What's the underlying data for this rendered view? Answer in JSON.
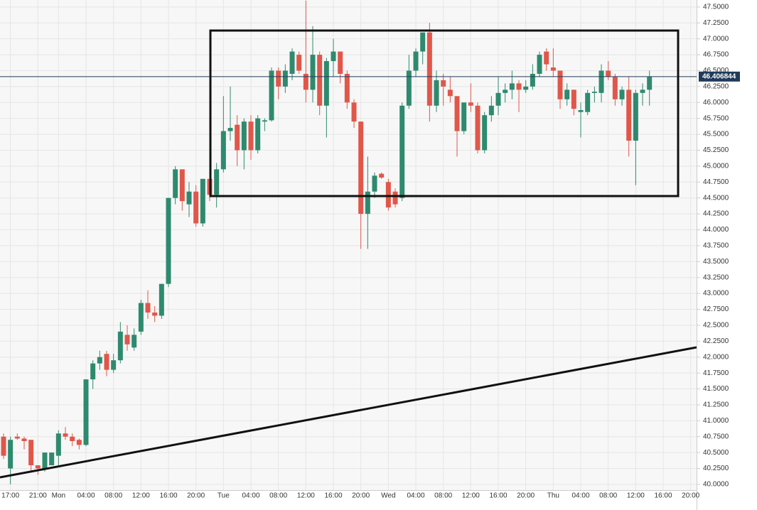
{
  "chart_data": {
    "type": "candlestick",
    "categories": [
      null,
      "17:00",
      null,
      null,
      null,
      "21:00",
      null,
      null,
      "Mon",
      null,
      null,
      null,
      "04:00",
      null,
      null,
      null,
      "08:00",
      null,
      null,
      null,
      "12:00",
      null,
      null,
      null,
      "16:00",
      null,
      null,
      null,
      "20:00",
      null,
      null,
      null,
      "Tue",
      null,
      null,
      null,
      "04:00",
      null,
      null,
      null,
      "08:00",
      null,
      null,
      null,
      "12:00",
      null,
      null,
      null,
      "16:00",
      null,
      null,
      null,
      "20:00",
      null,
      null,
      null,
      "Wed",
      null,
      null,
      null,
      "04:00",
      null,
      null,
      null,
      "08:00",
      null,
      null,
      null,
      "12:00",
      null,
      null,
      null,
      "16:00",
      null,
      null,
      null,
      "20:00",
      null,
      null,
      null,
      "Thu",
      null,
      null,
      null,
      "04:00",
      null,
      null,
      null,
      "08:00",
      null,
      null,
      null,
      "12:00",
      null,
      null,
      null,
      "16:00",
      null,
      null,
      null,
      "20:00"
    ],
    "open": [
      40.75,
      40.25,
      40.75,
      40.72,
      40.7,
      40.3,
      40.25,
      40.3,
      40.45,
      40.8,
      40.75,
      40.7,
      40.62,
      41.65,
      41.9,
      42.05,
      41.8,
      41.95,
      42.35,
      42.15,
      42.4,
      42.85,
      42.7,
      42.65,
      43.15,
      44.5,
      44.95,
      44.4,
      44.6,
      44.1,
      44.8,
      44.55,
      44.95,
      45.55,
      45.65,
      45.25,
      45.7,
      45.25,
      45.7,
      45.72,
      46.5,
      46.25,
      46.45,
      46.75,
      46.45,
      46.2,
      46.75,
      45.95,
      46.65,
      46.8,
      46.45,
      46.0,
      45.7,
      44.25,
      44.6,
      44.88,
      44.75,
      44.6,
      44.5,
      45.95,
      46.5,
      46.8,
      47.1,
      45.95,
      46.35,
      46.2,
      46.1,
      45.55,
      46.0,
      45.95,
      45.25,
      45.8,
      45.95,
      46.15,
      46.2,
      46.3,
      46.2,
      46.25,
      46.45,
      46.8,
      46.55,
      46.5,
      46.05,
      46.2,
      45.85,
      45.85,
      46.15,
      46.15,
      46.5,
      46.4,
      46.05,
      46.2,
      45.4,
      46.15,
      46.2,
      null,
      null,
      null,
      null,
      null,
      null
    ],
    "high": [
      40.8,
      40.75,
      40.8,
      40.75,
      40.7,
      40.3,
      40.5,
      40.5,
      40.85,
      40.9,
      40.8,
      40.72,
      41.65,
      41.95,
      42.1,
      42.1,
      42.05,
      42.55,
      42.5,
      42.45,
      42.9,
      43.05,
      42.8,
      43.15,
      44.5,
      45.0,
      44.95,
      44.75,
      44.7,
      44.8,
      44.85,
      45.05,
      46.1,
      46.25,
      45.8,
      45.75,
      45.8,
      45.8,
      45.75,
      46.55,
      46.55,
      46.6,
      46.85,
      46.8,
      47.6,
      47.2,
      46.8,
      46.7,
      47.0,
      46.8,
      46.5,
      46.05,
      45.7,
      45.15,
      44.9,
      44.9,
      44.8,
      44.65,
      46.0,
      46.75,
      46.85,
      47.1,
      47.25,
      46.5,
      46.45,
      46.4,
      46.1,
      46.0,
      46.3,
      46.0,
      45.85,
      46.1,
      46.4,
      46.3,
      46.5,
      46.35,
      46.35,
      46.6,
      46.8,
      46.85,
      46.85,
      46.5,
      46.3,
      46.2,
      46.0,
      46.2,
      46.25,
      46.6,
      46.65,
      46.45,
      46.25,
      46.4,
      46.2,
      46.3,
      46.5,
      null,
      null,
      null,
      null,
      null,
      null
    ],
    "low": [
      40.4,
      40.0,
      40.7,
      40.55,
      40.2,
      40.15,
      40.2,
      40.3,
      40.3,
      40.7,
      40.6,
      40.55,
      40.6,
      41.5,
      41.8,
      41.7,
      41.75,
      41.9,
      42.1,
      42.1,
      42.35,
      42.6,
      42.55,
      42.6,
      43.1,
      44.4,
      44.3,
      44.2,
      44.05,
      44.05,
      44.45,
      44.35,
      44.9,
      45.4,
      45.0,
      44.95,
      45.1,
      45.2,
      45.55,
      45.7,
      46.05,
      46.15,
      46.35,
      46.45,
      46.0,
      46.0,
      45.8,
      45.45,
      46.4,
      46.3,
      45.9,
      45.6,
      43.7,
      43.7,
      44.5,
      44.8,
      44.3,
      44.35,
      44.45,
      45.9,
      46.4,
      46.6,
      45.7,
      45.85,
      45.95,
      46.0,
      45.15,
      45.5,
      45.85,
      45.2,
      45.2,
      45.7,
      45.8,
      46.0,
      46.05,
      45.85,
      46.15,
      46.2,
      46.4,
      46.5,
      46.4,
      45.9,
      45.95,
      45.8,
      45.45,
      45.8,
      46.0,
      46.0,
      46.35,
      45.95,
      45.95,
      45.15,
      44.7,
      45.95,
      45.95,
      null,
      null,
      null,
      null,
      null,
      null
    ],
    "close": [
      40.45,
      40.7,
      40.72,
      40.68,
      40.3,
      40.25,
      40.5,
      40.5,
      40.8,
      40.75,
      40.68,
      40.62,
      41.65,
      41.9,
      42.0,
      41.8,
      41.95,
      42.4,
      42.2,
      42.35,
      42.85,
      42.7,
      42.65,
      43.15,
      44.5,
      44.95,
      44.45,
      44.6,
      44.1,
      44.8,
      44.55,
      44.95,
      45.55,
      45.6,
      45.25,
      45.7,
      45.25,
      45.75,
      45.72,
      46.5,
      46.25,
      46.5,
      46.8,
      46.5,
      46.2,
      46.75,
      45.95,
      46.65,
      46.8,
      46.45,
      46.0,
      45.7,
      44.25,
      44.6,
      44.85,
      44.82,
      44.35,
      44.4,
      45.95,
      46.5,
      46.8,
      47.1,
      45.95,
      46.35,
      46.25,
      46.1,
      45.55,
      46.0,
      45.95,
      45.25,
      45.8,
      45.95,
      46.15,
      46.2,
      46.3,
      46.2,
      46.25,
      46.45,
      46.75,
      46.6,
      46.5,
      46.05,
      46.2,
      45.9,
      45.88,
      46.15,
      46.17,
      46.5,
      46.4,
      46.05,
      46.2,
      45.4,
      46.15,
      46.2,
      46.4,
      null,
      null,
      null,
      null,
      null,
      null
    ],
    "up_color": "#2e8a6e",
    "down_color": "#e0574a",
    "ylim": [
      39.91,
      47.61
    ],
    "yticks": [
      {
        "value": 40,
        "label": "40.0000"
      },
      {
        "value": 40.25,
        "label": "40.2500"
      },
      {
        "value": 40.5,
        "label": "40.5000"
      },
      {
        "value": 40.75,
        "label": "40.7500"
      },
      {
        "value": 41,
        "label": "41.0000"
      },
      {
        "value": 41.25,
        "label": "41.2500"
      },
      {
        "value": 41.5,
        "label": "41.5000"
      },
      {
        "value": 41.75,
        "label": "41.7500"
      },
      {
        "value": 42,
        "label": "42.0000"
      },
      {
        "value": 42.25,
        "label": "42.2500"
      },
      {
        "value": 42.5,
        "label": "42.5000"
      },
      {
        "value": 42.75,
        "label": "42.7500"
      },
      {
        "value": 43,
        "label": "43.0000"
      },
      {
        "value": 43.25,
        "label": "43.2500"
      },
      {
        "value": 43.5,
        "label": "43.5000"
      },
      {
        "value": 43.75,
        "label": "43.7500"
      },
      {
        "value": 44,
        "label": "44.0000"
      },
      {
        "value": 44.25,
        "label": "44.2500"
      },
      {
        "value": 44.5,
        "label": "44.5000"
      },
      {
        "value": 44.75,
        "label": "44.7500"
      },
      {
        "value": 45,
        "label": "45.0000"
      },
      {
        "value": 45.25,
        "label": "45.2500"
      },
      {
        "value": 45.5,
        "label": "45.5000"
      },
      {
        "value": 45.75,
        "label": "45.7500"
      },
      {
        "value": 46,
        "label": "46.0000"
      },
      {
        "value": 46.25,
        "label": "46.2500"
      },
      {
        "value": 46.5,
        "label": "46.5000"
      },
      {
        "value": 46.75,
        "label": "46.7500"
      },
      {
        "value": 47,
        "label": "47.0000"
      },
      {
        "value": 47.25,
        "label": "47.2500"
      },
      {
        "value": 47.5,
        "label": "47.5000"
      }
    ],
    "grid": true,
    "last_price": 46.406844,
    "last_price_color": "#1f3b5a"
  }
}
